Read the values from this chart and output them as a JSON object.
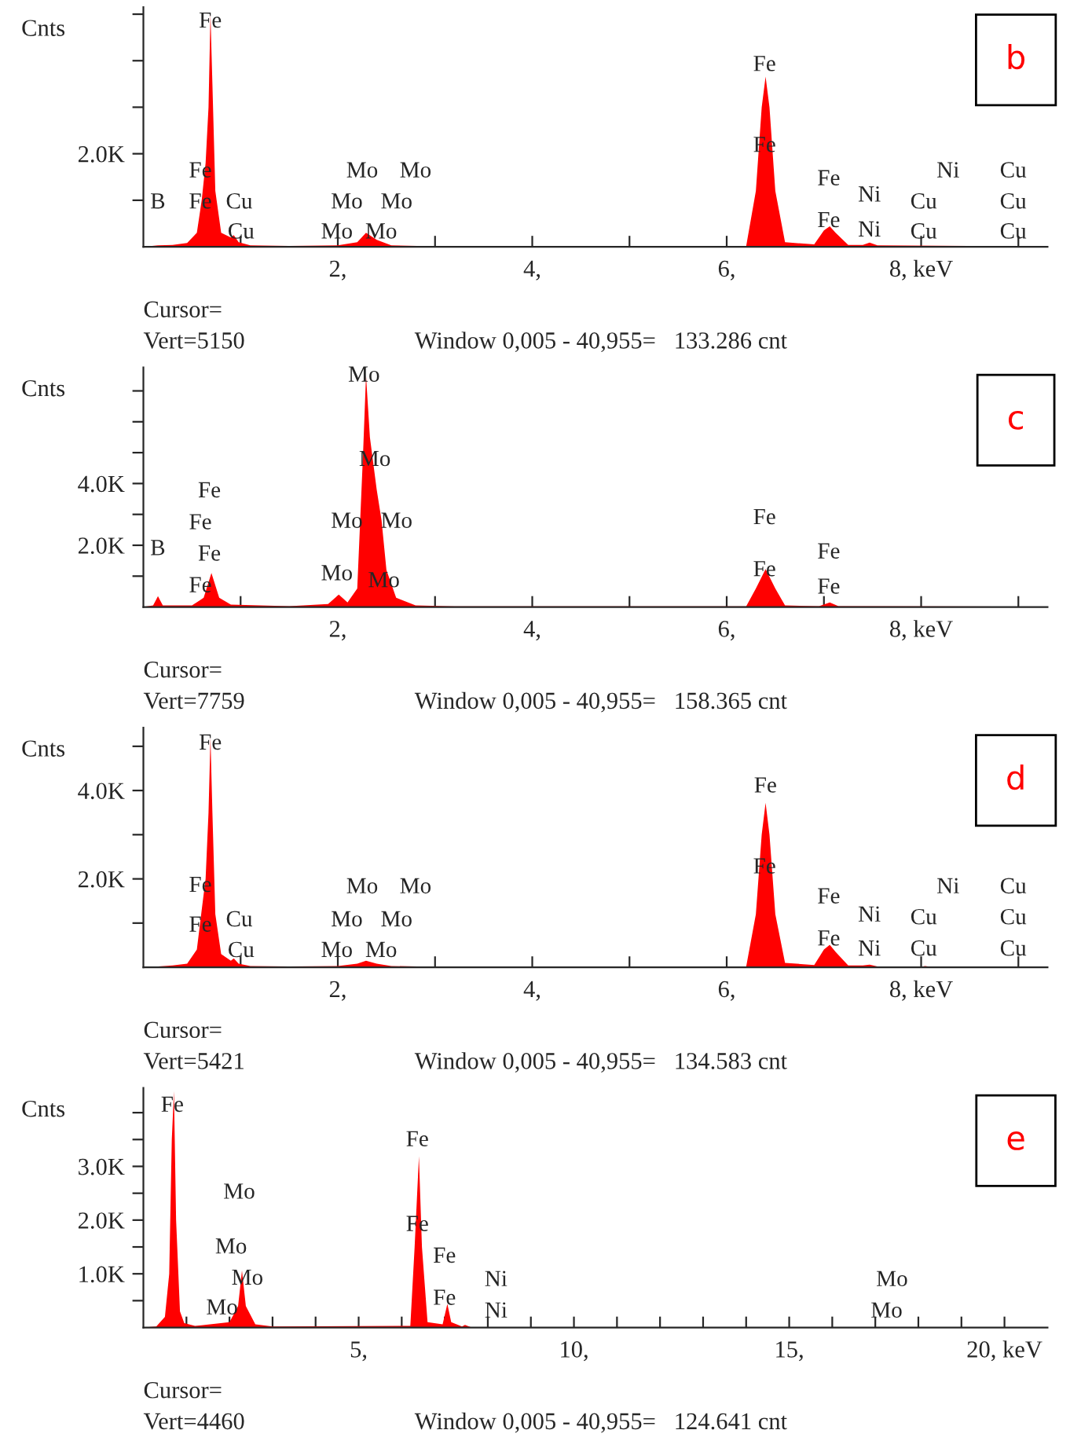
{
  "chart_data": [
    {
      "type": "area",
      "title": "b",
      "ylabel": "Cnts",
      "color": "#ff0000",
      "grid": false,
      "x": [
        0.0,
        0.15,
        0.3,
        0.45,
        0.55,
        0.6,
        0.64,
        0.67,
        0.69,
        0.71,
        0.74,
        0.8,
        0.9,
        0.93,
        0.98,
        1.1,
        1.5,
        2.0,
        2.2,
        2.29,
        2.4,
        2.55,
        3.0,
        6.2,
        6.3,
        6.36,
        6.4,
        6.44,
        6.5,
        6.6,
        6.9,
        7.0,
        7.06,
        7.12,
        7.25,
        7.4,
        7.47,
        7.55,
        9.3
      ],
      "values": [
        0,
        30,
        40,
        80,
        300,
        1000,
        1800,
        3000,
        5000,
        3500,
        1200,
        300,
        200,
        250,
        100,
        30,
        20,
        30,
        100,
        300,
        150,
        30,
        10,
        10,
        1200,
        3000,
        3660,
        3000,
        1200,
        100,
        50,
        350,
        440,
        300,
        40,
        40,
        90,
        30,
        10
      ],
      "xlim": [
        0,
        9.3
      ],
      "ylim": [
        0,
        5150
      ],
      "xticks": [
        {
          "value": 1,
          "label": null
        },
        {
          "value": 2,
          "label": "2,"
        },
        {
          "value": 3,
          "label": null
        },
        {
          "value": 4,
          "label": "4,"
        },
        {
          "value": 5,
          "label": null
        },
        {
          "value": 6,
          "label": "6,"
        },
        {
          "value": 7,
          "label": null
        },
        {
          "value": 8,
          "label": "8, keV"
        },
        {
          "value": 9,
          "label": null
        }
      ],
      "yticks": [
        {
          "value": 1000,
          "label": null
        },
        {
          "value": 2000,
          "label": "2.0K"
        },
        {
          "value": 3000,
          "label": null
        },
        {
          "value": 4000,
          "label": null
        },
        {
          "value": 5000,
          "label": null
        }
      ],
      "annotations": [
        "Cursor=",
        "Vert=5150",
        "Window 0,005 - 40,955=   133.286 cnt",
        "Fe",
        "Fe",
        "Fe",
        "Fe",
        "Fe",
        "B",
        "Cu",
        "Cu",
        "Mo",
        "Mo",
        "Mo",
        "Mo",
        "Mo",
        "Mo",
        "Fe",
        "Fe",
        "Ni",
        "Ni",
        "Ni",
        "Cu",
        "Cu",
        "Cu",
        "Cu",
        "Cu"
      ]
    },
    {
      "type": "area",
      "title": "c",
      "ylabel": "Cnts",
      "color": "#ff0000",
      "grid": false,
      "x": [
        0.0,
        0.1,
        0.15,
        0.2,
        0.5,
        0.62,
        0.7,
        0.78,
        0.9,
        1.5,
        1.9,
        2.01,
        2.1,
        2.2,
        2.26,
        2.29,
        2.33,
        2.4,
        2.45,
        2.5,
        2.6,
        2.8,
        3.2,
        6.2,
        6.3,
        6.4,
        6.5,
        6.6,
        6.95,
        7.06,
        7.15,
        9.3
      ],
      "values": [
        0,
        50,
        350,
        50,
        50,
        300,
        1100,
        300,
        80,
        30,
        100,
        400,
        150,
        600,
        5000,
        7500,
        5500,
        3800,
        2800,
        1200,
        300,
        50,
        20,
        20,
        600,
        1230,
        600,
        50,
        30,
        150,
        30,
        10
      ],
      "xlim": [
        0,
        9.3
      ],
      "ylim": [
        0,
        7759
      ],
      "xticks": [
        {
          "value": 1,
          "label": null
        },
        {
          "value": 2,
          "label": "2,"
        },
        {
          "value": 3,
          "label": null
        },
        {
          "value": 4,
          "label": "4,"
        },
        {
          "value": 5,
          "label": null
        },
        {
          "value": 6,
          "label": "6,"
        },
        {
          "value": 7,
          "label": null
        },
        {
          "value": 8,
          "label": "8, keV"
        },
        {
          "value": 9,
          "label": null
        }
      ],
      "yticks": [
        {
          "value": 1000,
          "label": null
        },
        {
          "value": 2000,
          "label": "2.0K"
        },
        {
          "value": 3000,
          "label": null
        },
        {
          "value": 4000,
          "label": "4.0K"
        },
        {
          "value": 5000,
          "label": null
        },
        {
          "value": 6000,
          "label": null
        },
        {
          "value": 7000,
          "label": null
        }
      ],
      "annotations": [
        "Cursor=",
        "Vert=7759",
        "Window 0,005 - 40,955=   158.365 cnt",
        "Mo",
        "Mo",
        "Mo",
        "Mo",
        "Mo",
        "Mo",
        "Fe",
        "Fe",
        "Fe",
        "Fe",
        "B",
        "Fe",
        "Fe",
        "Fe",
        "Fe"
      ]
    },
    {
      "type": "area",
      "title": "d",
      "ylabel": "Cnts",
      "color": "#ff0000",
      "grid": false,
      "x": [
        0.0,
        0.15,
        0.3,
        0.45,
        0.55,
        0.6,
        0.64,
        0.67,
        0.69,
        0.71,
        0.74,
        0.8,
        0.9,
        0.93,
        0.98,
        1.1,
        1.5,
        2.0,
        2.2,
        2.29,
        2.4,
        2.55,
        3.0,
        6.2,
        6.3,
        6.36,
        6.4,
        6.44,
        6.5,
        6.6,
        6.9,
        7.0,
        7.06,
        7.12,
        7.25,
        7.4,
        7.47,
        7.55,
        8.0,
        8.04,
        8.1,
        9.3
      ],
      "values": [
        0,
        20,
        40,
        80,
        400,
        1300,
        2000,
        3500,
        5200,
        3500,
        1200,
        300,
        150,
        200,
        80,
        30,
        20,
        30,
        80,
        150,
        80,
        30,
        10,
        10,
        1200,
        3000,
        3720,
        3000,
        1200,
        100,
        50,
        400,
        510,
        350,
        40,
        40,
        60,
        20,
        10,
        30,
        10,
        10
      ],
      "xlim": [
        0,
        9.3
      ],
      "ylim": [
        0,
        5421
      ],
      "xticks": [
        {
          "value": 1,
          "label": null
        },
        {
          "value": 2,
          "label": "2,"
        },
        {
          "value": 3,
          "label": null
        },
        {
          "value": 4,
          "label": "4,"
        },
        {
          "value": 5,
          "label": null
        },
        {
          "value": 6,
          "label": "6,"
        },
        {
          "value": 7,
          "label": null
        },
        {
          "value": 8,
          "label": "8, keV"
        },
        {
          "value": 9,
          "label": null
        }
      ],
      "yticks": [
        {
          "value": 1000,
          "label": null
        },
        {
          "value": 2000,
          "label": "2.0K"
        },
        {
          "value": 3000,
          "label": null
        },
        {
          "value": 4000,
          "label": "4.0K"
        },
        {
          "value": 5000,
          "label": null
        }
      ],
      "annotations": [
        "Cursor=",
        "Vert=5421",
        "Window 0,005 - 40,955=   134.583 cnt",
        "Fe",
        "Fe",
        "Fe",
        "Fe",
        "Fe",
        "Cu",
        "Cu",
        "Mo",
        "Mo",
        "Mo",
        "Mo",
        "Mo",
        "Mo",
        "Fe",
        "Fe",
        "Ni",
        "Ni",
        "Ni",
        "Cu",
        "Cu",
        "Cu",
        "Cu",
        "Cu"
      ]
    },
    {
      "type": "area",
      "title": "e",
      "ylabel": "Cnts",
      "color": "#ff0000",
      "grid": false,
      "x": [
        0.0,
        0.3,
        0.5,
        0.6,
        0.66,
        0.71,
        0.76,
        0.85,
        0.95,
        1.2,
        2.0,
        2.2,
        2.29,
        2.38,
        2.6,
        3.0,
        6.2,
        6.3,
        6.4,
        6.47,
        6.6,
        6.95,
        7.06,
        7.15,
        7.4,
        7.47,
        7.6,
        21.0
      ],
      "values": [
        0,
        20,
        200,
        1000,
        3500,
        4400,
        2000,
        300,
        80,
        30,
        100,
        400,
        1060,
        400,
        60,
        20,
        30,
        1500,
        3190,
        1500,
        100,
        60,
        440,
        100,
        20,
        50,
        10,
        0
      ],
      "xlim": [
        0,
        21
      ],
      "ylim": [
        0,
        4460
      ],
      "xticks": [
        {
          "value": 1,
          "label": null
        },
        {
          "value": 2,
          "label": null
        },
        {
          "value": 3,
          "label": null
        },
        {
          "value": 4,
          "label": null
        },
        {
          "value": 5,
          "label": "5,"
        },
        {
          "value": 6,
          "label": null
        },
        {
          "value": 7,
          "label": null
        },
        {
          "value": 8,
          "label": null
        },
        {
          "value": 9,
          "label": null
        },
        {
          "value": 10,
          "label": "10,"
        },
        {
          "value": 11,
          "label": null
        },
        {
          "value": 12,
          "label": null
        },
        {
          "value": 13,
          "label": null
        },
        {
          "value": 14,
          "label": null
        },
        {
          "value": 15,
          "label": "15,"
        },
        {
          "value": 16,
          "label": null
        },
        {
          "value": 17,
          "label": null
        },
        {
          "value": 18,
          "label": null
        },
        {
          "value": 19,
          "label": null
        },
        {
          "value": 20,
          "label": "20, keV"
        }
      ],
      "yticks": [
        {
          "value": 500,
          "label": null
        },
        {
          "value": 1000,
          "label": "1.0K"
        },
        {
          "value": 1500,
          "label": null
        },
        {
          "value": 2000,
          "label": "2.0K"
        },
        {
          "value": 2500,
          "label": null
        },
        {
          "value": 3000,
          "label": "3.0K"
        },
        {
          "value": 3500,
          "label": null
        },
        {
          "value": 4000,
          "label": null
        }
      ],
      "annotations": [
        "Cursor=",
        "Vert=4460",
        "Window 0,005 - 40,955=   124.641 cnt",
        "Fe",
        "Fe",
        "Fe",
        "Fe",
        "Fe",
        "Mo",
        "Mo",
        "Mo",
        "Mo",
        "Ni",
        "Ni",
        "Mo",
        "Mo"
      ]
    }
  ]
}
